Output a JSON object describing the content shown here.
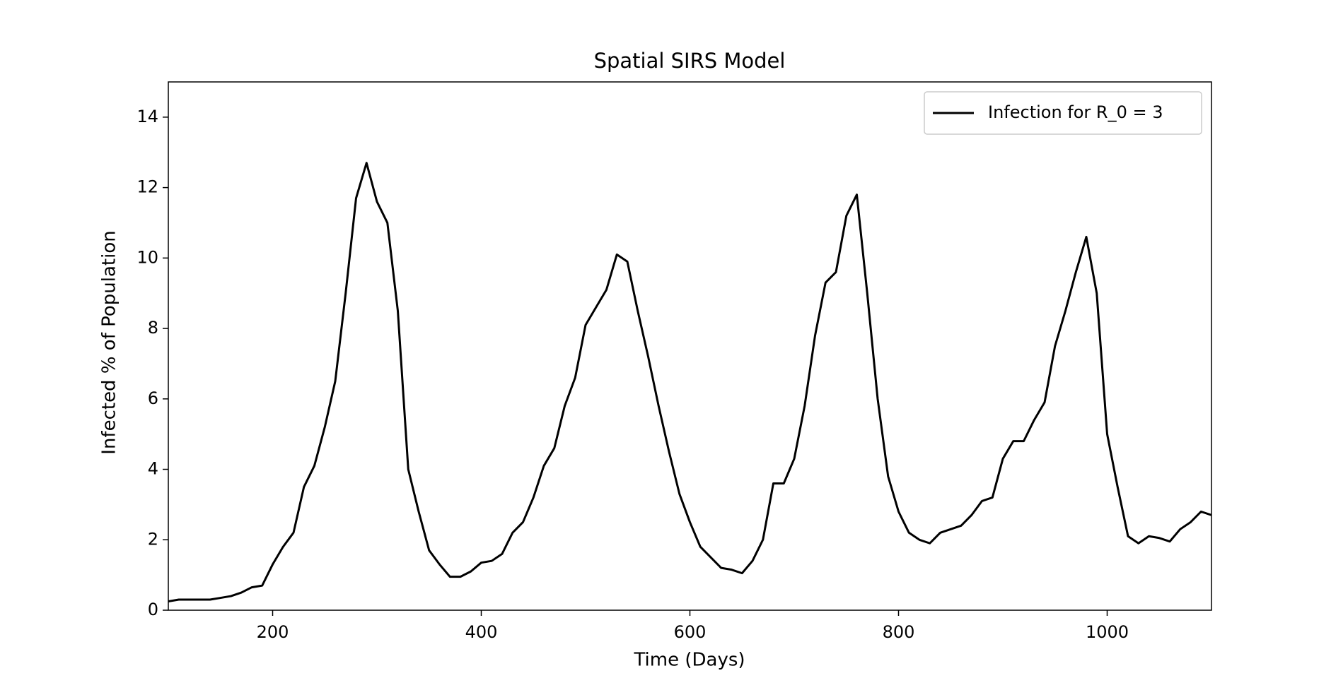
{
  "chart_data": {
    "type": "line",
    "title": "Spatial SIRS Model",
    "xlabel": "Time (Days)",
    "ylabel": "Infected % of Population",
    "x": [
      100,
      110,
      120,
      130,
      140,
      150,
      160,
      170,
      180,
      190,
      200,
      210,
      220,
      230,
      240,
      250,
      260,
      270,
      280,
      290,
      300,
      310,
      320,
      330,
      340,
      350,
      360,
      370,
      380,
      390,
      400,
      410,
      420,
      430,
      440,
      450,
      460,
      470,
      480,
      490,
      500,
      510,
      520,
      530,
      540,
      550,
      560,
      570,
      580,
      590,
      600,
      610,
      620,
      630,
      640,
      650,
      660,
      670,
      680,
      690,
      700,
      710,
      720,
      730,
      740,
      750,
      760,
      770,
      780,
      790,
      800,
      810,
      820,
      830,
      840,
      850,
      860,
      870,
      880,
      890,
      900,
      910,
      920,
      930,
      940,
      950,
      960,
      970,
      980,
      990,
      1000,
      1010,
      1020,
      1030,
      1040,
      1050,
      1060,
      1070,
      1080,
      1090,
      1100
    ],
    "series": [
      {
        "name": "Infection for R_0 = 3",
        "color": "#000000",
        "values": [
          0.25,
          0.3,
          0.3,
          0.3,
          0.3,
          0.35,
          0.4,
          0.5,
          0.65,
          0.7,
          1.3,
          1.8,
          2.2,
          3.5,
          4.1,
          5.2,
          6.5,
          9.0,
          11.7,
          12.7,
          11.6,
          11.0,
          8.5,
          4.0,
          2.8,
          1.7,
          1.3,
          0.95,
          0.95,
          1.1,
          1.35,
          1.4,
          1.6,
          2.2,
          2.5,
          3.2,
          4.1,
          4.6,
          5.8,
          6.6,
          8.1,
          8.6,
          9.1,
          10.1,
          9.9,
          8.5,
          7.2,
          5.8,
          4.5,
          3.3,
          2.5,
          1.8,
          1.5,
          1.2,
          1.15,
          1.05,
          1.4,
          2.0,
          3.6,
          3.6,
          4.3,
          5.8,
          7.8,
          9.3,
          9.6,
          11.2,
          11.8,
          9.0,
          6.0,
          3.8,
          2.8,
          2.2,
          2.0,
          1.9,
          2.2,
          2.3,
          2.4,
          2.7,
          3.1,
          3.2,
          4.3,
          4.8,
          4.8,
          5.4,
          5.9,
          7.5,
          8.5,
          9.6,
          10.6,
          9.0,
          5.0,
          3.5,
          2.1,
          1.9,
          2.1,
          2.05,
          1.95,
          2.3,
          2.5,
          2.8,
          2.7
        ]
      }
    ],
    "xlim": [
      100,
      1100
    ],
    "xticks": [
      200,
      400,
      600,
      800,
      1000
    ],
    "ylim": [
      0,
      15
    ],
    "yticks": [
      0,
      2,
      4,
      6,
      8,
      10,
      12,
      14
    ],
    "legend": "upper right"
  }
}
